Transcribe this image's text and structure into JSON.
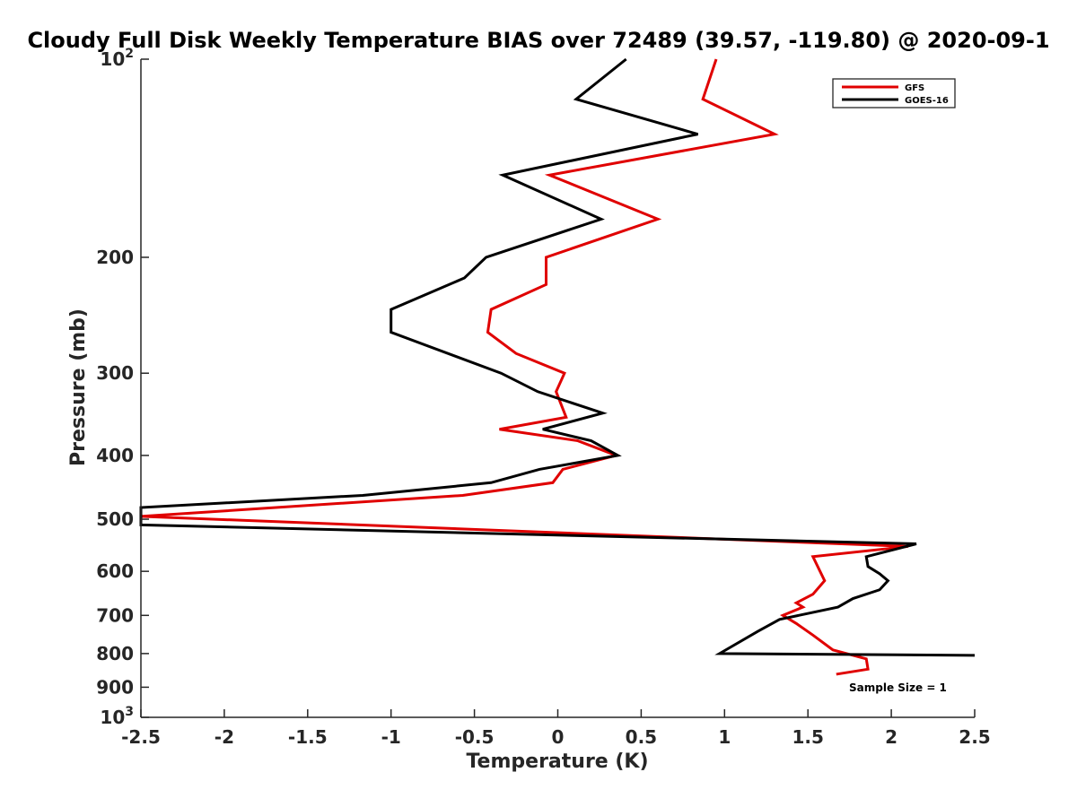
{
  "chart_data": {
    "type": "line",
    "title": "Cloudy Full Disk Weekly Temperature BIAS over 72489 (39.57, -119.80) @ 2020-09-1",
    "xlabel": "Temperature (K)",
    "ylabel": "Pressure (mb)",
    "xlim": [
      -2.5,
      2.5
    ],
    "ylim": [
      100,
      1000
    ],
    "y_scale": "log",
    "y_reversed": true,
    "grid": false,
    "legend_position": "top-right",
    "x_ticks": [
      "-2.5",
      "-2",
      "-1.5",
      "-1",
      "-0.5",
      "0",
      "0.5",
      "1",
      "1.5",
      "2",
      "2.5"
    ],
    "y_ticks": [
      {
        "value": 100,
        "base": "10",
        "exp": "2"
      },
      {
        "value": 200,
        "label": "200"
      },
      {
        "value": 300,
        "label": "300"
      },
      {
        "value": 400,
        "label": "400"
      },
      {
        "value": 500,
        "label": "500"
      },
      {
        "value": 600,
        "label": "600"
      },
      {
        "value": 700,
        "label": "700"
      },
      {
        "value": 800,
        "label": "800"
      },
      {
        "value": 900,
        "label": "900"
      },
      {
        "value": 1000,
        "base": "10",
        "exp": "3"
      }
    ],
    "series": [
      {
        "name": "GFS",
        "color": "#e00000",
        "points": [
          [
            0.95,
            100
          ],
          [
            0.87,
            115
          ],
          [
            1.3,
            130
          ],
          [
            -0.05,
            150
          ],
          [
            0.6,
            175
          ],
          [
            -0.07,
            200
          ],
          [
            -0.07,
            220
          ],
          [
            -0.4,
            240
          ],
          [
            -0.42,
            260
          ],
          [
            -0.25,
            280
          ],
          [
            0.04,
            300
          ],
          [
            -0.01,
            320
          ],
          [
            0.05,
            350
          ],
          [
            -0.35,
            365
          ],
          [
            0.12,
            380
          ],
          [
            0.35,
            400
          ],
          [
            0.03,
            420
          ],
          [
            -0.03,
            440
          ],
          [
            -0.57,
            460
          ],
          [
            -2.5,
            495
          ],
          [
            2.1,
            550
          ],
          [
            1.53,
            570
          ],
          [
            1.6,
            620
          ],
          [
            1.53,
            650
          ],
          [
            1.43,
            670
          ],
          [
            1.47,
            680
          ],
          [
            1.35,
            700
          ],
          [
            1.43,
            720
          ],
          [
            1.53,
            750
          ],
          [
            1.65,
            790
          ],
          [
            1.85,
            815
          ],
          [
            1.86,
            845
          ],
          [
            1.67,
            860
          ]
        ]
      },
      {
        "name": "GOES-16",
        "color": "#000000",
        "points": [
          [
            0.41,
            100
          ],
          [
            0.11,
            115
          ],
          [
            0.84,
            130
          ],
          [
            -0.33,
            150
          ],
          [
            0.26,
            175
          ],
          [
            -0.43,
            200
          ],
          [
            -0.56,
            215
          ],
          [
            -1.0,
            240
          ],
          [
            -1.0,
            260
          ],
          [
            -0.34,
            300
          ],
          [
            -0.12,
            320
          ],
          [
            0.27,
            345
          ],
          [
            -0.09,
            365
          ],
          [
            0.2,
            380
          ],
          [
            0.36,
            400
          ],
          [
            -0.11,
            420
          ],
          [
            -0.4,
            440
          ],
          [
            -1.17,
            460
          ],
          [
            -2.5,
            480
          ],
          [
            -2.5,
            510
          ],
          [
            2.15,
            545
          ],
          [
            1.85,
            570
          ],
          [
            1.86,
            590
          ],
          [
            1.93,
            605
          ],
          [
            1.98,
            620
          ],
          [
            1.93,
            640
          ],
          [
            1.77,
            660
          ],
          [
            1.68,
            680
          ],
          [
            1.33,
            710
          ],
          [
            1.2,
            740
          ],
          [
            0.97,
            800
          ],
          [
            2.5,
            805
          ]
        ]
      }
    ],
    "annotation": "Sample Size = 1"
  }
}
